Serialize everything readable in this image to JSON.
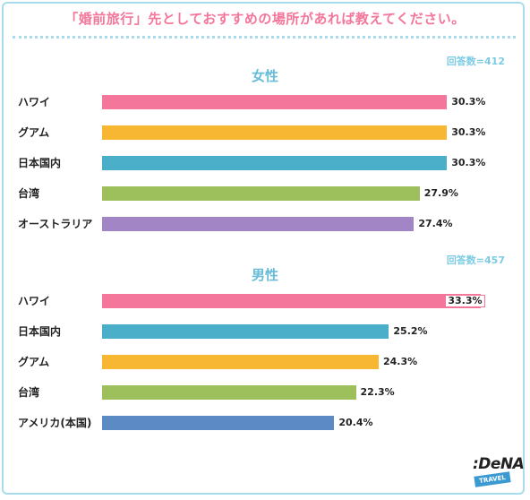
{
  "title": "「婚前旅行」先としておすすめの場所があれば教えてください。",
  "chart_data": [
    {
      "type": "bar",
      "orientation": "horizontal",
      "title": "女性",
      "respondents": "回答数=412",
      "categories": [
        "ハワイ",
        "グアム",
        "日本国内",
        "台湾",
        "オーストラリア"
      ],
      "values": [
        30.3,
        30.3,
        30.3,
        27.9,
        27.4
      ],
      "value_labels": [
        "30.3%",
        "30.3%",
        "30.3%",
        "27.9%",
        "27.4%"
      ],
      "colors": [
        "#f4769a",
        "#f7b733",
        "#4bafc9",
        "#9dbf5c",
        "#a285c4"
      ],
      "xlim": [
        0,
        35
      ],
      "grid": false
    },
    {
      "type": "bar",
      "orientation": "horizontal",
      "title": "男性",
      "respondents": "回答数=457",
      "categories": [
        "ハワイ",
        "日本国内",
        "グアム",
        "台湾",
        "アメリカ(本国)"
      ],
      "values": [
        33.3,
        25.2,
        24.3,
        22.3,
        20.4
      ],
      "value_labels": [
        "33.3%",
        "25.2%",
        "24.3%",
        "22.3%",
        "20.4%"
      ],
      "colors": [
        "#f4769a",
        "#4bafc9",
        "#f7b733",
        "#9dbf5c",
        "#5b8ac4"
      ],
      "highlight_index": 0,
      "xlim": [
        0,
        35
      ],
      "grid": false
    }
  ],
  "logo": {
    "name": ":DeNA",
    "tag": "TRAVEL"
  }
}
